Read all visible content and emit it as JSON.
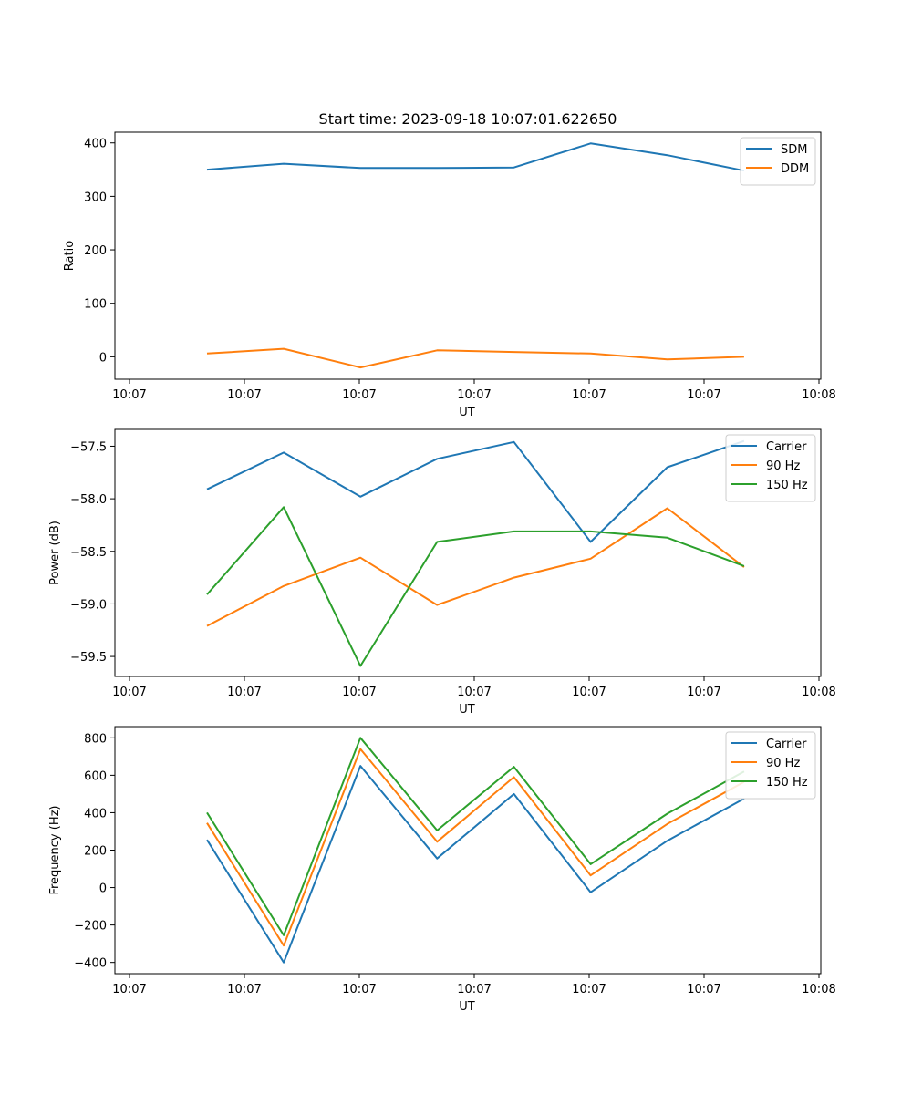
{
  "chart_data": [
    {
      "type": "line",
      "title": "Start time: 2023-09-18 10:07:01.622650",
      "xlabel": "UT",
      "ylabel": "Ratio",
      "x_tick_labels": [
        "10:07",
        "10:07",
        "10:07",
        "10:07",
        "10:07",
        "10:07",
        "10:08"
      ],
      "y_ticks": [
        0,
        100,
        200,
        300,
        400
      ],
      "y_tick_labels": [
        "0",
        "100",
        "200",
        "300",
        "400"
      ],
      "ylim": [
        -42,
        420
      ],
      "xlim": [
        -0.7,
        8.5
      ],
      "x": [
        0.5,
        1.5,
        2.5,
        3.5,
        4.5,
        5.5,
        6.5,
        7.5
      ],
      "legend_position": "top-right",
      "series": [
        {
          "name": "SDM",
          "color": "#1f77b4",
          "values": [
            350,
            361,
            353,
            353,
            354,
            399,
            377,
            348
          ]
        },
        {
          "name": "DDM",
          "color": "#ff7f0e",
          "values": [
            6,
            15,
            -20,
            12,
            9,
            6,
            -5,
            0
          ]
        }
      ]
    },
    {
      "type": "line",
      "title": "",
      "xlabel": "UT",
      "ylabel": "Power (dB)",
      "x_tick_labels": [
        "10:07",
        "10:07",
        "10:07",
        "10:07",
        "10:07",
        "10:07",
        "10:08"
      ],
      "y_ticks": [
        -57.5,
        -58.0,
        -58.5,
        -59.0,
        -59.5
      ],
      "y_tick_labels": [
        "−57.5",
        "−58.0",
        "−58.5",
        "−59.0",
        "−59.5"
      ],
      "ylim": [
        -59.69,
        -57.34
      ],
      "xlim": [
        -0.7,
        8.5
      ],
      "x": [
        0.5,
        1.5,
        2.5,
        3.5,
        4.5,
        5.5,
        6.5,
        7.5
      ],
      "legend_position": "top-right",
      "series": [
        {
          "name": "Carrier",
          "color": "#1f77b4",
          "values": [
            -57.91,
            -57.56,
            -57.98,
            -57.62,
            -57.46,
            -58.41,
            -57.7,
            -57.45
          ]
        },
        {
          "name": "90 Hz",
          "color": "#ff7f0e",
          "values": [
            -59.21,
            -58.83,
            -58.56,
            -59.01,
            -58.75,
            -58.57,
            -58.09,
            -58.65
          ]
        },
        {
          "name": "150 Hz",
          "color": "#2ca02c",
          "values": [
            -58.91,
            -58.08,
            -59.59,
            -58.41,
            -58.31,
            -58.31,
            -58.37,
            -58.64
          ]
        }
      ]
    },
    {
      "type": "line",
      "title": "",
      "xlabel": "UT",
      "ylabel": "Frequency (Hz)",
      "x_tick_labels": [
        "10:07",
        "10:07",
        "10:07",
        "10:07",
        "10:07",
        "10:07",
        "10:08"
      ],
      "y_ticks": [
        800,
        600,
        400,
        200,
        0,
        -200,
        -400
      ],
      "y_tick_labels": [
        "800",
        "600",
        "400",
        "200",
        "0",
        "−200",
        "−400"
      ],
      "ylim": [
        -460,
        860
      ],
      "xlim": [
        -0.7,
        8.5
      ],
      "x": [
        0.5,
        1.5,
        2.5,
        3.5,
        4.5,
        5.5,
        6.5,
        7.5
      ],
      "legend_position": "top-right",
      "series": [
        {
          "name": "Carrier",
          "color": "#1f77b4",
          "values": [
            255,
            -400,
            650,
            155,
            500,
            -25,
            250,
            475
          ]
        },
        {
          "name": "90 Hz",
          "color": "#ff7f0e",
          "values": [
            345,
            -310,
            740,
            245,
            590,
            65,
            340,
            565
          ]
        },
        {
          "name": "150 Hz",
          "color": "#2ca02c",
          "values": [
            400,
            -255,
            800,
            305,
            645,
            125,
            395,
            620
          ]
        }
      ]
    }
  ]
}
